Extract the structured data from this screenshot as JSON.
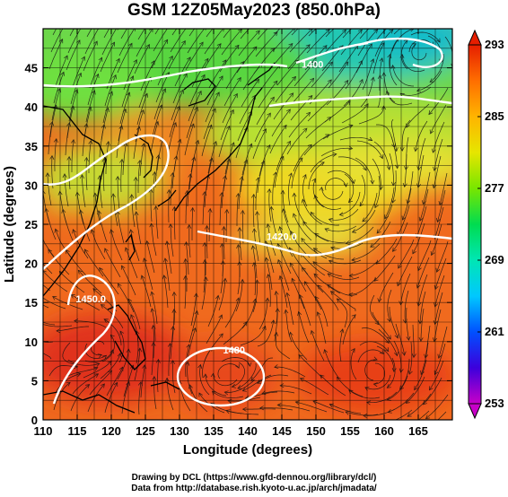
{
  "title": "GSM 12Z05May2023 (850.0hPa)",
  "chart_data": {
    "type": "heatmap",
    "title": "GSM 12Z05May2023 (850.0hPa)",
    "xlabel": "Longitude (degrees)",
    "ylabel": "Latitude  (degrees)",
    "xlim": [
      110,
      170
    ],
    "ylim": [
      0,
      50
    ],
    "x_ticks": [
      110,
      115,
      120,
      125,
      130,
      135,
      140,
      145,
      150,
      155,
      160,
      165
    ],
    "y_ticks": [
      0,
      5,
      10,
      15,
      20,
      25,
      30,
      35,
      40,
      45
    ],
    "colorbar": {
      "ticks": [
        253,
        261,
        269,
        277,
        285,
        293
      ],
      "colors": [
        "#c800c8",
        "#3c00dc",
        "#0050ff",
        "#00c8ff",
        "#00e6b4",
        "#00dc50",
        "#78e600",
        "#e6e600",
        "#ffb400",
        "#ff6e00",
        "#e61e00"
      ]
    },
    "contour_labels": [
      {
        "text": "1400",
        "lon": 149.5,
        "lat": 45.0
      },
      {
        "text": "1420.0",
        "lon": 145.0,
        "lat": 23.0
      },
      {
        "text": "1450.0",
        "lon": 117.0,
        "lat": 15.0
      },
      {
        "text": "1480",
        "lon": 138.0,
        "lat": 8.5
      }
    ],
    "grid": true
  },
  "credits": {
    "line1": "Drawing by DCL (https://www.gfd-dennou.org/library/dcl/)",
    "line2": "Data from http://database.rish.kyoto-u.ac.jp/arch/jmadata/"
  }
}
